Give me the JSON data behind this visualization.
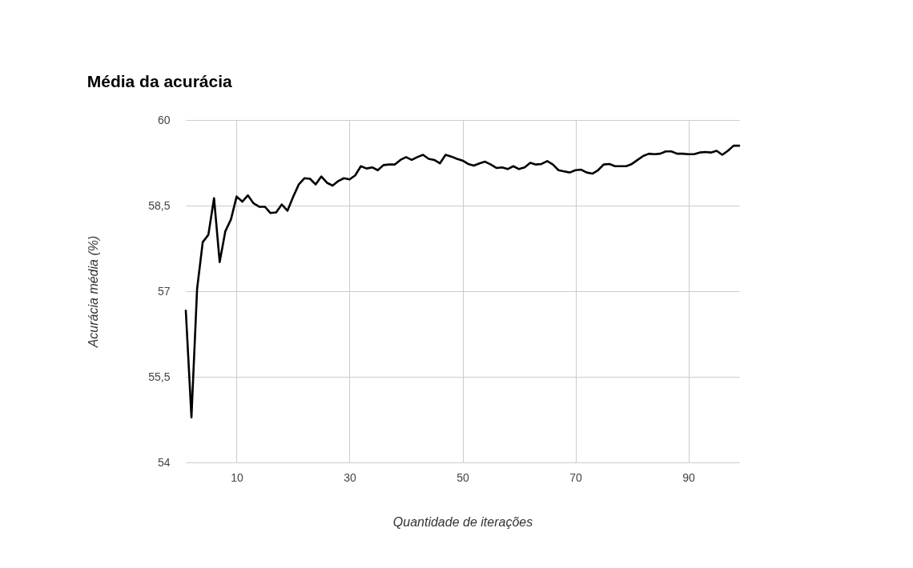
{
  "chart_data": {
    "type": "line",
    "title": "Média da acurácia",
    "xlabel": "Quantidade de iterações",
    "ylabel": "Acurácia média (%)",
    "x": [
      1,
      2,
      3,
      4,
      5,
      6,
      7,
      8,
      9,
      10,
      11,
      12,
      13,
      14,
      15,
      16,
      17,
      18,
      19,
      20,
      21,
      22,
      23,
      24,
      25,
      26,
      27,
      28,
      29,
      30,
      31,
      32,
      33,
      34,
      35,
      36,
      37,
      38,
      39,
      40,
      41,
      42,
      43,
      44,
      45,
      46,
      47,
      48,
      49,
      50,
      51,
      52,
      53,
      54,
      55,
      56,
      57,
      58,
      59,
      60,
      61,
      62,
      63,
      64,
      65,
      66,
      67,
      68,
      69,
      70,
      71,
      72,
      73,
      74,
      75,
      76,
      77,
      78,
      79,
      80,
      81,
      82,
      83,
      84,
      85,
      86,
      87,
      88,
      89,
      90,
      91,
      92,
      93,
      94,
      95,
      96,
      97,
      98,
      99
    ],
    "series": [
      {
        "color": "#000000",
        "values": [
          56.66,
          54.79,
          57.04,
          57.86,
          57.99,
          58.63,
          57.51,
          58.05,
          58.26,
          58.66,
          58.57,
          58.68,
          58.54,
          58.48,
          58.48,
          58.37,
          58.38,
          58.52,
          58.41,
          58.65,
          58.87,
          58.98,
          58.97,
          58.87,
          59.01,
          58.9,
          58.85,
          58.93,
          58.98,
          58.96,
          59.03,
          59.19,
          59.15,
          59.17,
          59.12,
          59.21,
          59.22,
          59.22,
          59.3,
          59.35,
          59.3,
          59.35,
          59.39,
          59.32,
          59.3,
          59.24,
          59.39,
          59.36,
          59.32,
          59.29,
          59.23,
          59.2,
          59.24,
          59.27,
          59.22,
          59.16,
          59.17,
          59.14,
          59.19,
          59.14,
          59.17,
          59.25,
          59.22,
          59.23,
          59.28,
          59.22,
          59.12,
          59.1,
          59.08,
          59.12,
          59.13,
          59.08,
          59.06,
          59.12,
          59.22,
          59.23,
          59.19,
          59.19,
          59.19,
          59.23,
          59.3,
          59.37,
          59.41,
          59.4,
          59.41,
          59.45,
          59.45,
          59.41,
          59.41,
          59.4,
          59.4,
          59.43,
          59.44,
          59.43,
          59.46,
          59.39,
          59.46,
          59.55,
          59.55
        ]
      }
    ],
    "xlim": [
      1,
      99
    ],
    "xticks": [
      10,
      30,
      50,
      70,
      90
    ],
    "ylim": [
      54,
      60
    ],
    "yticks": [
      54,
      {
        "value": 55.5,
        "label": "55,5"
      },
      57,
      {
        "value": 58.5,
        "label": "58,5"
      },
      60
    ],
    "grid": true,
    "legend": false
  }
}
